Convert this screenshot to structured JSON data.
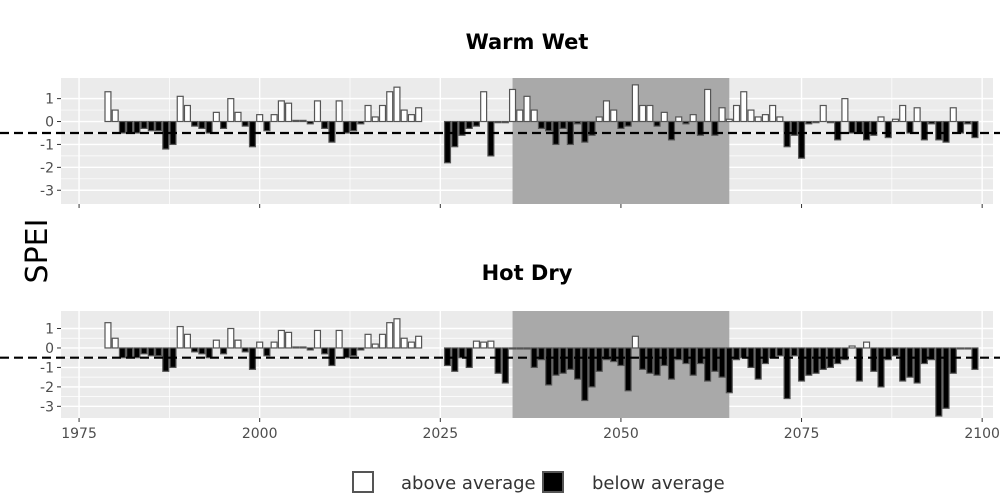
{
  "y_axis_label": "SPEI",
  "legend": {
    "items": [
      {
        "label": "above average",
        "fill": "#ffffff"
      },
      {
        "label": "below average",
        "fill": "#000000"
      }
    ]
  },
  "colors": {
    "panel_bg": "#ebebeb",
    "grid": "#ffffff",
    "highlight": "#a9a9a9",
    "bar_outline": "#555555",
    "above": "#ffffff",
    "below": "#000000",
    "reference_line": "#000000"
  },
  "chart_data": [
    {
      "type": "bar",
      "title": "Warm Wet",
      "xlim": [
        1972.5,
        2101.5
      ],
      "ylim": [
        -3.6,
        1.9
      ],
      "x_ticks": [
        1975,
        2000,
        2025,
        2050,
        2075,
        2100
      ],
      "x_tick_labels_shown": false,
      "y_ticks": [
        1,
        0,
        -1,
        -2,
        -3
      ],
      "threshold": -0.5,
      "highlight_period": [
        2035,
        2065
      ],
      "grid": true,
      "x": [
        1979,
        1980,
        1981,
        1982,
        1983,
        1984,
        1985,
        1986,
        1987,
        1988,
        1989,
        1990,
        1991,
        1992,
        1993,
        1994,
        1995,
        1996,
        1997,
        1998,
        1999,
        2000,
        2001,
        2002,
        2003,
        2004,
        2005,
        2006,
        2007,
        2008,
        2009,
        2010,
        2011,
        2012,
        2013,
        2014,
        2015,
        2016,
        2017,
        2018,
        2019,
        2020,
        2021,
        2022,
        2026,
        2027,
        2028,
        2029,
        2030,
        2031,
        2032,
        2033,
        2034,
        2035,
        2036,
        2037,
        2038,
        2039,
        2040,
        2041,
        2042,
        2043,
        2044,
        2045,
        2046,
        2047,
        2048,
        2049,
        2050,
        2051,
        2052,
        2053,
        2054,
        2055,
        2056,
        2057,
        2058,
        2059,
        2060,
        2061,
        2062,
        2063,
        2064,
        2065,
        2066,
        2067,
        2068,
        2069,
        2070,
        2071,
        2072,
        2073,
        2074,
        2075,
        2076,
        2077,
        2078,
        2079,
        2080,
        2081,
        2082,
        2083,
        2084,
        2085,
        2086,
        2087,
        2088,
        2089,
        2090,
        2091,
        2092,
        2093,
        2094,
        2095,
        2096,
        2097,
        2098,
        2099
      ],
      "values": [
        1.3,
        0.5,
        -0.5,
        -0.5,
        -0.5,
        -0.3,
        -0.4,
        -0.4,
        -1.2,
        -1.0,
        1.1,
        0.7,
        -0.2,
        -0.3,
        -0.5,
        0.4,
        -0.3,
        1.0,
        0.4,
        -0.2,
        -1.1,
        0.3,
        -0.4,
        0.3,
        0.9,
        0.8,
        0.05,
        0.05,
        -0.1,
        0.9,
        -0.3,
        -0.9,
        0.9,
        -0.5,
        -0.4,
        -0.1,
        0.7,
        0.2,
        0.7,
        1.3,
        1.5,
        0.5,
        0.3,
        0.6,
        -1.8,
        -1.1,
        -0.6,
        -0.3,
        -0.2,
        1.3,
        -1.5,
        -0.05,
        -0.05,
        1.4,
        0.5,
        1.1,
        0.5,
        -0.3,
        -0.4,
        -1.0,
        -0.3,
        -1.0,
        -0.1,
        -0.9,
        -0.6,
        0.2,
        0.9,
        0.5,
        -0.3,
        -0.2,
        1.6,
        0.7,
        0.7,
        -0.2,
        0.4,
        -0.8,
        0.2,
        -0.1,
        0.3,
        -0.6,
        1.4,
        -0.6,
        0.6,
        0.1,
        0.7,
        1.3,
        0.5,
        0.2,
        0.3,
        0.7,
        0.2,
        -1.1,
        -0.6,
        -1.6,
        -0.1,
        -0.05,
        0.7,
        -0.05,
        -0.8,
        1.0,
        -0.5,
        -0.5,
        -0.8,
        -0.6,
        0.2,
        -0.7,
        0.1,
        0.7,
        -0.5,
        0.6,
        -0.8,
        -0.1,
        -0.8,
        -0.9,
        0.6,
        -0.5,
        -0.1,
        -0.7
      ]
    },
    {
      "type": "bar",
      "title": "Hot Dry",
      "xlim": [
        1972.5,
        2101.5
      ],
      "ylim": [
        -3.6,
        1.9
      ],
      "x_ticks": [
        1975,
        2000,
        2025,
        2050,
        2075,
        2100
      ],
      "x_tick_labels_shown": true,
      "y_ticks": [
        1,
        0,
        -1,
        -2,
        -3
      ],
      "threshold": -0.5,
      "highlight_period": [
        2035,
        2065
      ],
      "grid": true,
      "x": [
        1979,
        1980,
        1981,
        1982,
        1983,
        1984,
        1985,
        1986,
        1987,
        1988,
        1989,
        1990,
        1991,
        1992,
        1993,
        1994,
        1995,
        1996,
        1997,
        1998,
        1999,
        2000,
        2001,
        2002,
        2003,
        2004,
        2005,
        2006,
        2007,
        2008,
        2009,
        2010,
        2011,
        2012,
        2013,
        2014,
        2015,
        2016,
        2017,
        2018,
        2019,
        2020,
        2021,
        2022,
        2026,
        2027,
        2028,
        2029,
        2030,
        2031,
        2032,
        2033,
        2034,
        2035,
        2036,
        2037,
        2038,
        2039,
        2040,
        2041,
        2042,
        2043,
        2044,
        2045,
        2046,
        2047,
        2048,
        2049,
        2050,
        2051,
        2052,
        2053,
        2054,
        2055,
        2056,
        2057,
        2058,
        2059,
        2060,
        2061,
        2062,
        2063,
        2064,
        2065,
        2066,
        2067,
        2068,
        2069,
        2070,
        2071,
        2072,
        2073,
        2074,
        2075,
        2076,
        2077,
        2078,
        2079,
        2080,
        2081,
        2082,
        2083,
        2084,
        2085,
        2086,
        2087,
        2088,
        2089,
        2090,
        2091,
        2092,
        2093,
        2094,
        2095,
        2096,
        2097,
        2098,
        2099
      ],
      "values": [
        1.3,
        0.5,
        -0.5,
        -0.5,
        -0.5,
        -0.3,
        -0.4,
        -0.4,
        -1.2,
        -1.0,
        1.1,
        0.7,
        -0.2,
        -0.3,
        -0.5,
        0.4,
        -0.3,
        1.0,
        0.4,
        -0.2,
        -1.1,
        0.3,
        -0.4,
        0.3,
        0.9,
        0.8,
        0.05,
        0.05,
        -0.1,
        0.9,
        -0.3,
        -0.9,
        0.9,
        -0.5,
        -0.4,
        -0.1,
        0.7,
        0.2,
        0.7,
        1.3,
        1.5,
        0.5,
        0.3,
        0.6,
        -0.9,
        -1.2,
        -0.5,
        -1.0,
        0.35,
        0.3,
        0.35,
        -1.3,
        -1.8,
        -0.05,
        -0.05,
        -0.05,
        -1.0,
        -0.6,
        -1.9,
        -1.4,
        -1.3,
        -1.1,
        -1.6,
        -2.7,
        -2.0,
        -1.2,
        -0.6,
        -0.7,
        -0.9,
        -2.2,
        0.6,
        -1.1,
        -1.3,
        -1.4,
        -0.9,
        -1.6,
        -0.6,
        -0.8,
        -1.4,
        -0.8,
        -1.7,
        -1.2,
        -1.5,
        -2.3,
        -0.6,
        -0.5,
        -1.0,
        -1.6,
        -0.8,
        -0.5,
        -0.4,
        -2.6,
        -0.4,
        -1.7,
        -1.4,
        -1.3,
        -1.1,
        -1.0,
        -0.8,
        -0.6,
        0.1,
        -1.7,
        0.3,
        -1.2,
        -2.0,
        -0.6,
        -0.4,
        -1.7,
        -1.5,
        -1.8,
        -0.8,
        -0.6,
        -3.5,
        -3.1,
        -1.3,
        -0.05,
        -0.05,
        -1.1
      ]
    }
  ]
}
